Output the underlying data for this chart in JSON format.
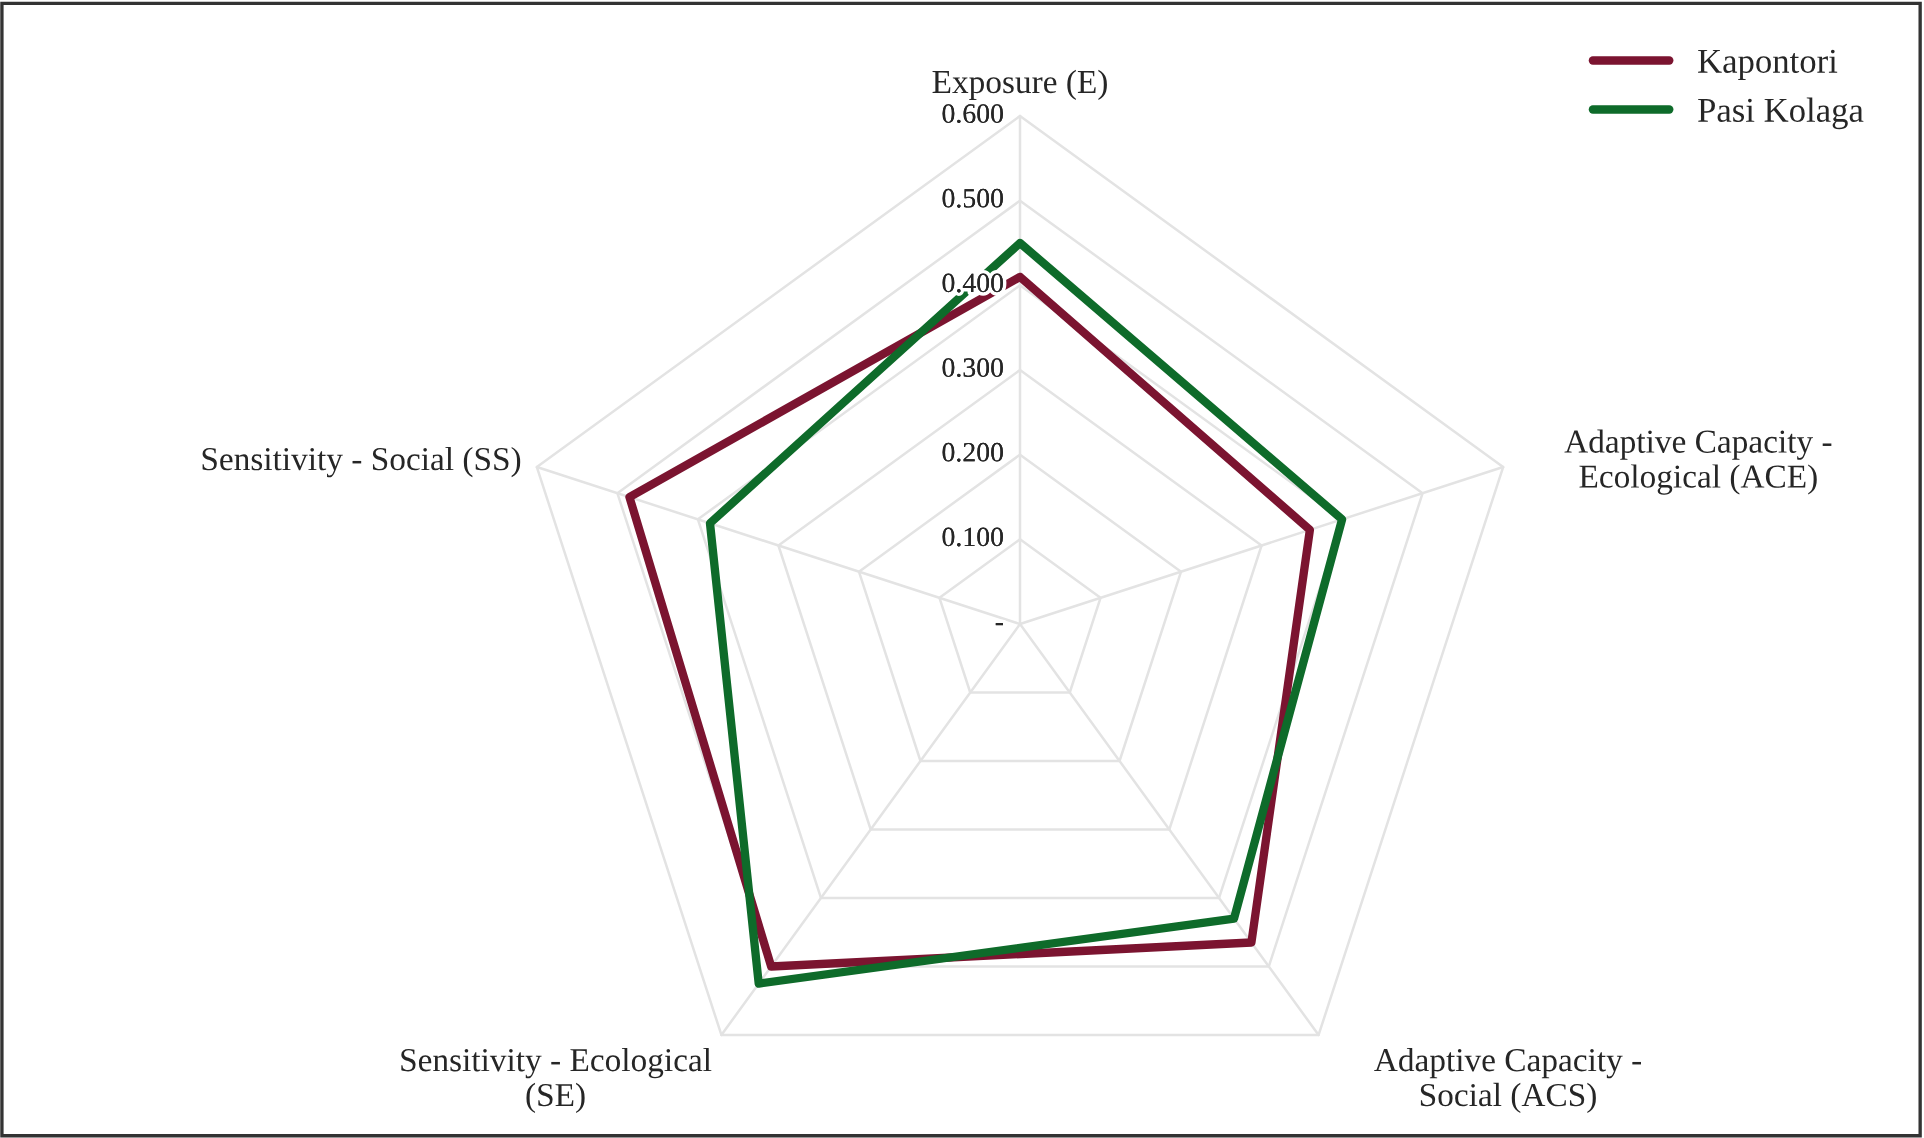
{
  "chart_data": {
    "type": "radar",
    "categories": [
      "Exposure (E)",
      "Adaptive Capacity - Ecological (ACE)",
      "Adaptive Capacity - Social (ACS)",
      "Sensitivity - Ecological (SE)",
      "Sensitivity - Social (SS)"
    ],
    "series": [
      {
        "name": "Kapontori",
        "color": "#7b1430",
        "values": [
          0.41,
          0.36,
          0.465,
          0.5,
          0.485
        ]
      },
      {
        "name": "Pasi Kolaga",
        "color": "#0e6b2a",
        "values": [
          0.45,
          0.4,
          0.43,
          0.525,
          0.385
        ]
      }
    ],
    "ylim": [
      0,
      0.6
    ],
    "yticks": [
      {
        "value": 0,
        "label": "-"
      },
      {
        "value": 0.1,
        "label": "0.100"
      },
      {
        "value": 0.2,
        "label": "0.200"
      },
      {
        "value": 0.3,
        "label": "0.300"
      },
      {
        "value": 0.4,
        "label": "0.400"
      },
      {
        "value": 0.5,
        "label": "0.500"
      },
      {
        "value": 0.6,
        "label": "0.600"
      }
    ],
    "grid": true,
    "legend": "top right",
    "marker": "none",
    "line_style": "solid"
  }
}
